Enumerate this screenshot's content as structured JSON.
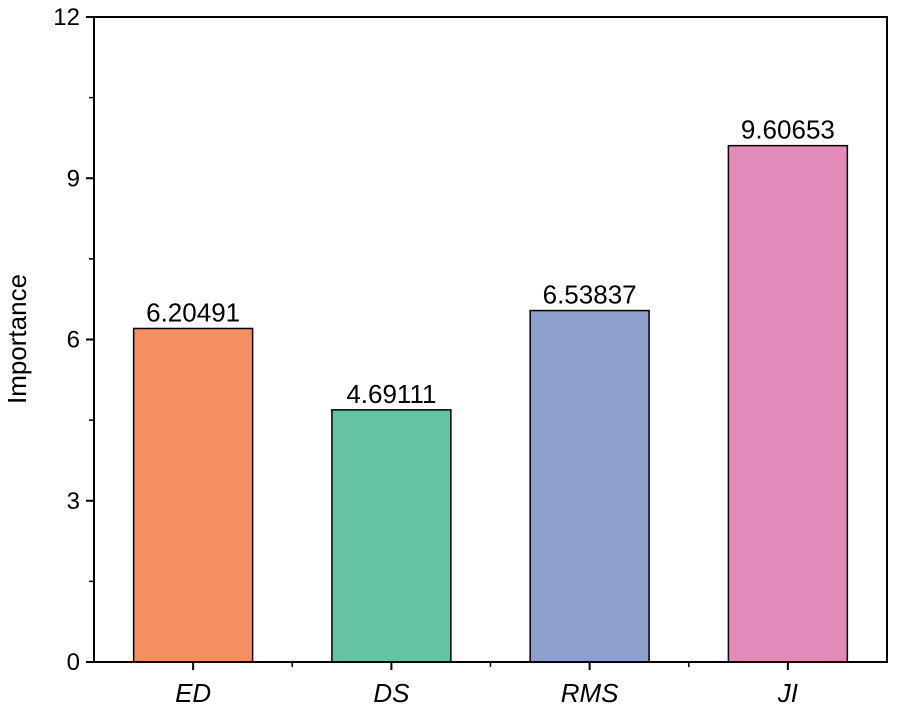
{
  "chart_data": {
    "type": "bar",
    "categories": [
      "ED",
      "DS",
      "RMS",
      "JI"
    ],
    "values": [
      6.20491,
      4.69111,
      6.53837,
      9.60653
    ],
    "data_labels": [
      "6.20491",
      "4.69111",
      "6.53837",
      "9.60653"
    ],
    "colors": [
      "#f58f62",
      "#66c2a5",
      "#8d9fcb",
      "#e28ab9"
    ],
    "xlabel": "",
    "ylabel": "Importance",
    "ylim": [
      0,
      12
    ],
    "yticks": [
      0,
      3,
      6,
      9,
      12
    ],
    "ytick_labels": [
      "0",
      "3",
      "6",
      "9",
      "12"
    ],
    "grid": false,
    "legend": "none"
  }
}
